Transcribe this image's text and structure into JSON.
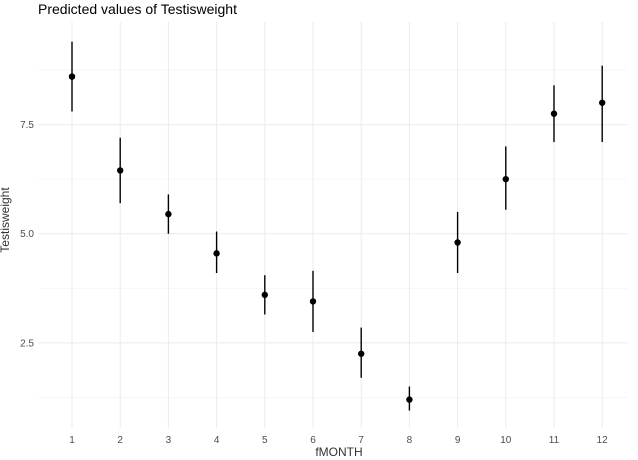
{
  "chart_data": {
    "type": "scatter",
    "title": "Predicted values of Testisweight",
    "xlabel": "fMONTH",
    "ylabel": "Testisweight",
    "categories": [
      "1",
      "2",
      "3",
      "4",
      "5",
      "6",
      "7",
      "8",
      "9",
      "10",
      "11",
      "12"
    ],
    "series": [
      {
        "values": [
          8.6,
          6.45,
          5.45,
          4.55,
          3.6,
          3.45,
          2.25,
          1.2,
          4.8,
          6.25,
          7.75,
          8.0
        ],
        "lower": [
          7.8,
          5.7,
          5.0,
          4.1,
          3.15,
          2.75,
          1.7,
          0.95,
          4.1,
          5.55,
          7.1,
          7.1
        ],
        "upper": [
          9.4,
          7.2,
          5.9,
          5.05,
          4.05,
          4.15,
          2.85,
          1.5,
          5.5,
          7.0,
          8.4,
          8.85
        ]
      }
    ],
    "y_ticks": [
      "2.5",
      "5.0",
      "7.5"
    ],
    "y_tick_values": [
      2.5,
      5.0,
      7.5
    ],
    "ylim": [
      0.55,
      9.85
    ],
    "grid": true,
    "legend": "none",
    "colors": {
      "point": "#000000",
      "errorbar": "#000000",
      "grid": "#ebebeb",
      "background": "#ffffff"
    }
  }
}
